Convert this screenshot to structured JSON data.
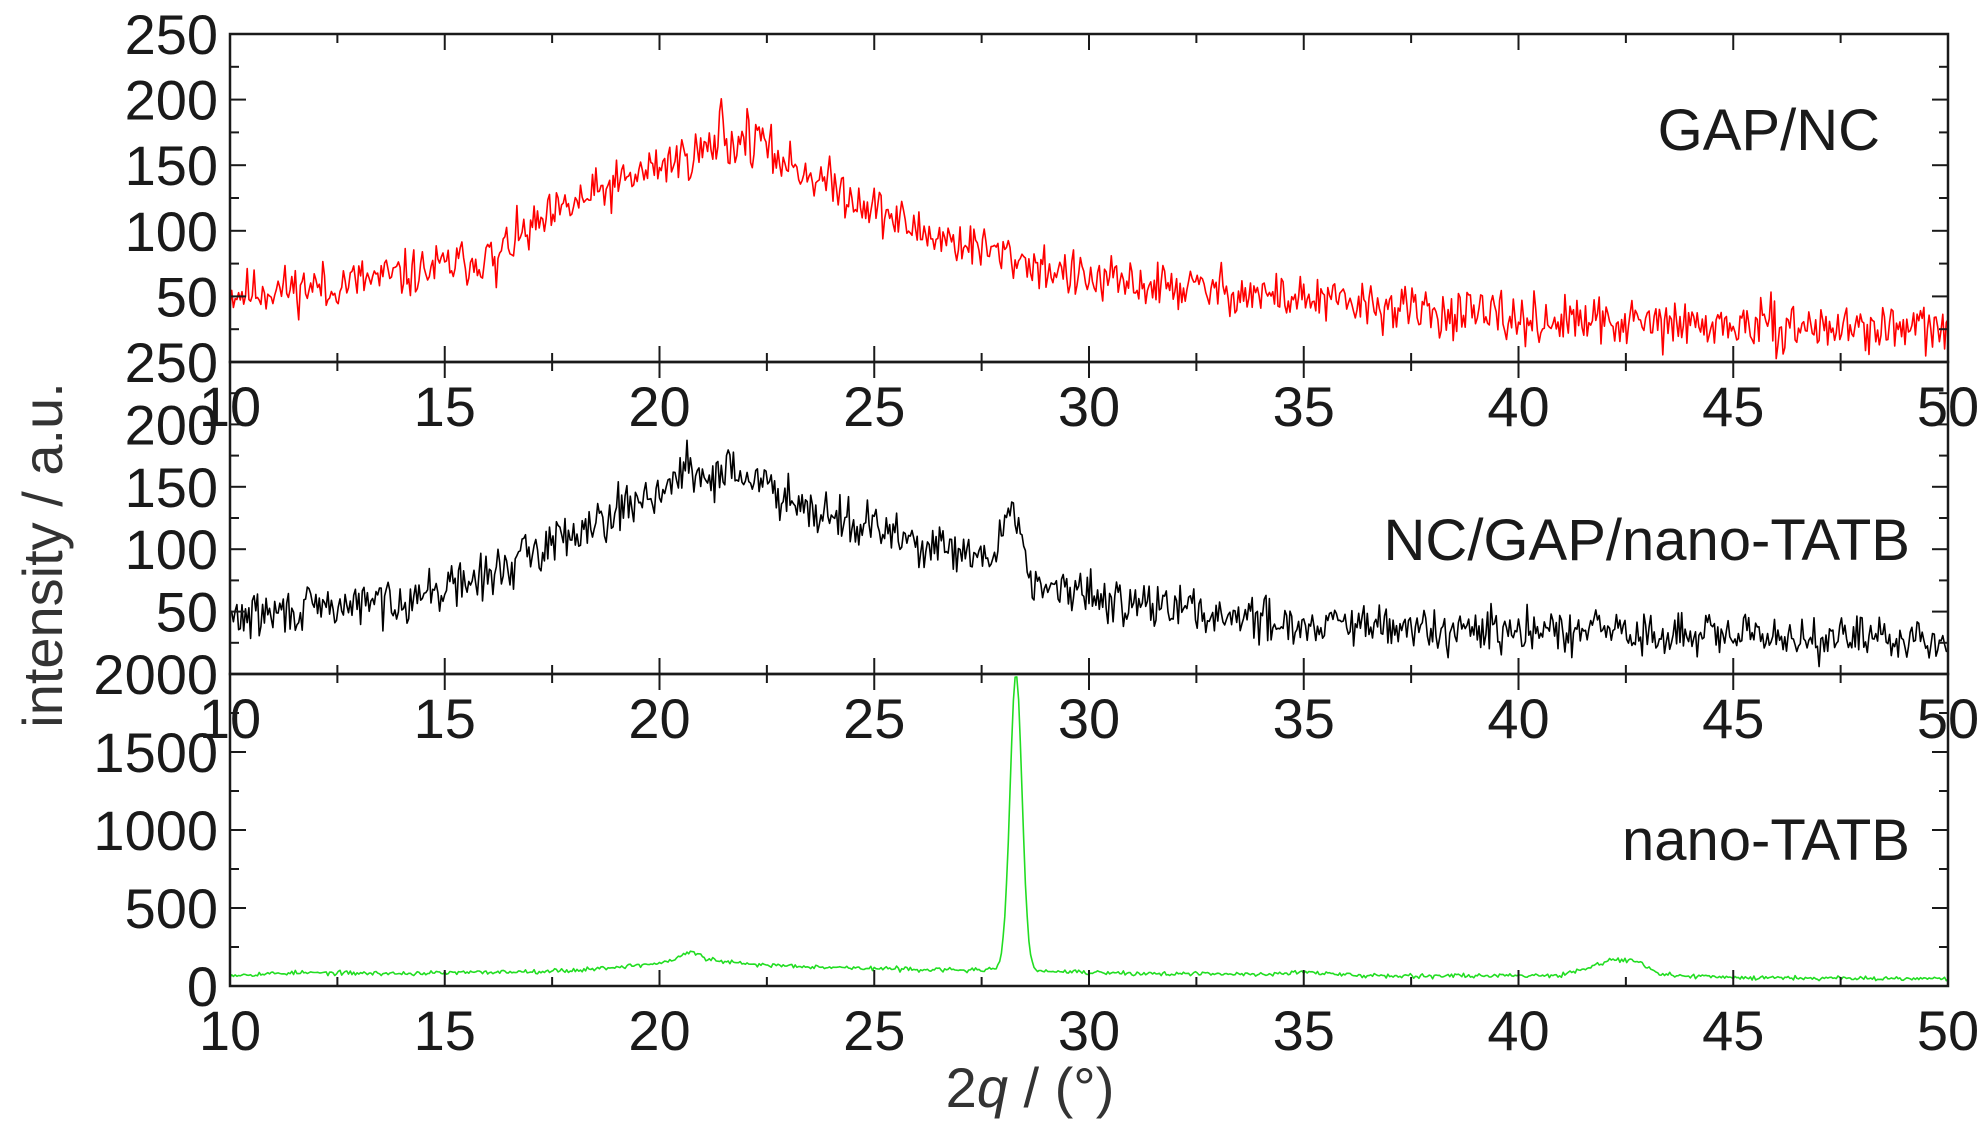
{
  "chart_data": {
    "type": "line",
    "ylabel": "intensity / a.u.",
    "xlabel": {
      "prefix": "2",
      "symbol": "q",
      "suffix": " / (°)"
    },
    "xlim": [
      10,
      50
    ],
    "xticks": [
      10,
      15,
      20,
      25,
      30,
      35,
      40,
      45,
      50
    ],
    "grid": false,
    "panels": [
      {
        "label": "GAP/NC",
        "color": "#ff0000",
        "ylim": [
          0,
          250
        ],
        "yticks": [
          50,
          100,
          150,
          200,
          250
        ],
        "noise": 9,
        "seed": 11,
        "profile": [
          [
            10,
            52
          ],
          [
            12,
            58
          ],
          [
            14,
            66
          ],
          [
            16,
            80
          ],
          [
            18,
            120
          ],
          [
            20,
            150
          ],
          [
            21.5,
            166
          ],
          [
            22.5,
            160
          ],
          [
            24,
            135
          ],
          [
            26,
            100
          ],
          [
            28,
            82
          ],
          [
            30,
            62
          ],
          [
            33,
            55
          ],
          [
            35,
            48
          ],
          [
            38,
            38
          ],
          [
            40,
            32
          ],
          [
            44,
            28
          ],
          [
            50,
            25
          ]
        ],
        "peaks": [
          [
            21.45,
            35,
            0.04
          ],
          [
            22.0,
            18,
            0.05
          ],
          [
            22.3,
            20,
            0.05
          ],
          [
            16.2,
            -22,
            0.04
          ],
          [
            12.3,
            -16,
            0.04
          ]
        ]
      },
      {
        "label": "NC/GAP/nano-TATB",
        "color": "#000000",
        "ylim": [
          0,
          250
        ],
        "yticks": [
          50,
          100,
          150,
          200,
          250
        ],
        "noise": 9,
        "seed": 29,
        "profile": [
          [
            10,
            45
          ],
          [
            12,
            52
          ],
          [
            14,
            60
          ],
          [
            16,
            78
          ],
          [
            18,
            115
          ],
          [
            20,
            148
          ],
          [
            21,
            158
          ],
          [
            22,
            158
          ],
          [
            24,
            128
          ],
          [
            26,
            105
          ],
          [
            27.5,
            90
          ],
          [
            29,
            68
          ],
          [
            31,
            58
          ],
          [
            33,
            48
          ],
          [
            35,
            40
          ],
          [
            38,
            35
          ],
          [
            42,
            32
          ],
          [
            45,
            30
          ],
          [
            50,
            28
          ]
        ],
        "peaks": [
          [
            28.2,
            55,
            0.22
          ],
          [
            20.6,
            22,
            0.05
          ],
          [
            21.6,
            28,
            0.05
          ],
          [
            42.1,
            10,
            0.15
          ]
        ]
      },
      {
        "label": "nano-TATB",
        "color": "#22dd22",
        "ylim": [
          0,
          2000
        ],
        "yticks": [
          0,
          500,
          1000,
          1500,
          2000
        ],
        "noise": 7,
        "seed": 53,
        "profile": [
          [
            10,
            70
          ],
          [
            11.5,
            85
          ],
          [
            14,
            80
          ],
          [
            16,
            88
          ],
          [
            18,
            100
          ],
          [
            19.8,
            140
          ],
          [
            20.8,
            180
          ],
          [
            22,
            140
          ],
          [
            25,
            112
          ],
          [
            27,
            102
          ],
          [
            28,
            105
          ],
          [
            29.5,
            90
          ],
          [
            31,
            80
          ],
          [
            34,
            75
          ],
          [
            35,
            90
          ],
          [
            36,
            70
          ],
          [
            38,
            65
          ],
          [
            41,
            70
          ],
          [
            42.2,
            170
          ],
          [
            42.8,
            160
          ],
          [
            43.3,
            70
          ],
          [
            45,
            55
          ],
          [
            50,
            48
          ]
        ],
        "peaks": [
          [
            28.3,
            1900,
            0.14
          ],
          [
            20.7,
            40,
            0.2
          ]
        ]
      }
    ]
  }
}
